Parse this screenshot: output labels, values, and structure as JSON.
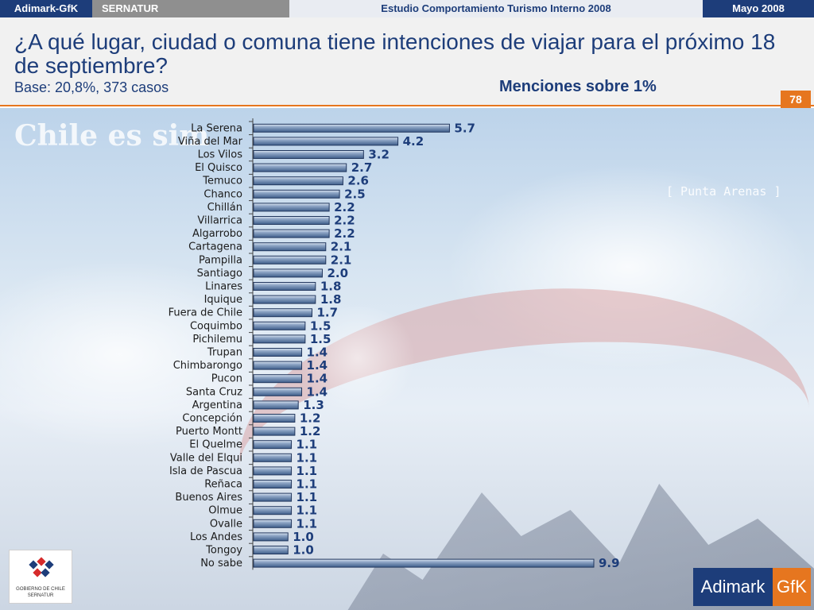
{
  "topbar": {
    "brand": "Adimark-GfK",
    "client": "SERNATUR",
    "study": "Estudio Comportamiento Turismo Interno 2008",
    "date": "Mayo 2008"
  },
  "header": {
    "title": "¿A qué lugar, ciudad o comuna tiene intenciones de viajar para el próximo 18 de septiembre?",
    "base": "Base: 20,8%, 373 casos",
    "note": "Menciones sobre 1%",
    "page_number": "78"
  },
  "background": {
    "chile_text": "Chile es sim",
    "punta_arenas": "[ Punta Arenas ]"
  },
  "logos": {
    "gobierno_line1": "GOBIERNO DE CHILE",
    "gobierno_line2": "SERNATUR",
    "adimark": "Adimark",
    "gfk": "GfK"
  },
  "colors": {
    "navy": "#1d3d7a",
    "orange": "#e6761f",
    "bar_fill": "#4f6e99",
    "bar_highlight": "#dce6f2"
  },
  "chart_data": {
    "type": "bar",
    "orientation": "horizontal",
    "title": "",
    "xlabel": "",
    "ylabel": "",
    "categories": [
      "La Serena",
      "Viña del Mar",
      "Los Vilos",
      "El Quisco",
      "Temuco",
      "Chanco",
      "Chillán",
      "Villarrica",
      "Algarrobo",
      "Cartagena",
      "Pampilla",
      "Santiago",
      "Linares",
      "Iquique",
      "Fuera de Chile",
      "Coquimbo",
      "Pichilemu",
      "Trupan",
      "Chimbarongo",
      "Pucon",
      "Santa Cruz",
      "Argentina",
      "Concepción",
      "Puerto Montt",
      "El Quelme",
      "Valle del Elqui",
      "Isla de Pascua",
      "Reñaca",
      "Buenos Aires",
      "Olmue",
      "Ovalle",
      "Los Andes",
      "Tongoy",
      "No sabe"
    ],
    "values": [
      5.7,
      4.2,
      3.2,
      2.7,
      2.6,
      2.5,
      2.2,
      2.2,
      2.2,
      2.1,
      2.1,
      2.0,
      1.8,
      1.8,
      1.7,
      1.5,
      1.5,
      1.4,
      1.4,
      1.4,
      1.4,
      1.3,
      1.2,
      1.2,
      1.1,
      1.1,
      1.1,
      1.1,
      1.1,
      1.1,
      1.1,
      1.0,
      1.0,
      9.9
    ],
    "value_labels": [
      "5.7",
      "4.2",
      "3.2",
      "2.7",
      "2.6",
      "2.5",
      "2.2",
      "2.2",
      "2.2",
      "2.1",
      "2.1",
      "2.0",
      "1.8",
      "1.8",
      "1.7",
      "1.5",
      "1.5",
      "1.4",
      "1.4",
      "1.4",
      "1.4",
      "1.3",
      "1.2",
      "1.2",
      "1.1",
      "1.1",
      "1.1",
      "1.1",
      "1.1",
      "1.1",
      "1.1",
      "1.0",
      "1.0",
      "9.9"
    ],
    "xlim": [
      0,
      9.9
    ],
    "grid": false,
    "legend": "none"
  }
}
